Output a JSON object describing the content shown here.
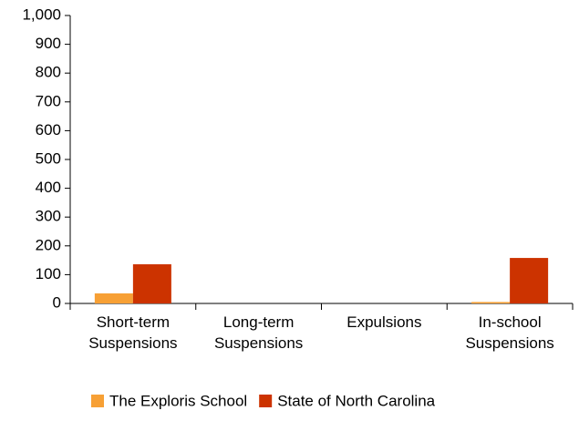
{
  "chart_data": {
    "type": "bar",
    "categories": [
      "Short-term Suspensions",
      "Long-term Suspensions",
      "Expulsions",
      "In-school Suspensions"
    ],
    "series": [
      {
        "name": "The Exploris School",
        "color": "#f7a035",
        "values": [
          35,
          0,
          0,
          5
        ]
      },
      {
        "name": "State of North Carolina",
        "color": "#cc3300",
        "values": [
          136,
          0,
          0,
          158
        ]
      }
    ],
    "ylim": [
      0,
      1000
    ],
    "yticks": [
      0,
      100,
      200,
      300,
      400,
      500,
      600,
      700,
      800,
      900,
      {
        "value": 1000,
        "label": "1,000"
      }
    ],
    "grid": false,
    "legend": "bottom"
  }
}
